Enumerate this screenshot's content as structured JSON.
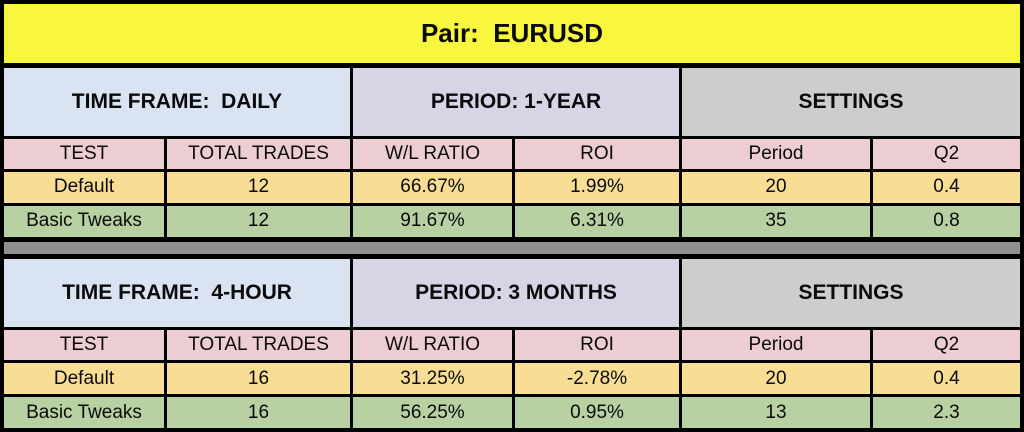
{
  "banner": {
    "title": "Pair:  EURUSD"
  },
  "colors": {
    "banner_yellow": "#f8f73d",
    "section_blue": "#dae3f1",
    "section_purple": "#d9d3e6",
    "section_gray": "#cdcdcb",
    "header_pink": "#eccdd2",
    "row_yellow": "#f8dd94",
    "row_green": "#b7d1a3",
    "divider_gray": "#8f8f8f",
    "border_black": "#000000"
  },
  "tables": [
    {
      "time_frame": "TIME FRAME:  DAILY",
      "period": "PERIOD: 1-YEAR",
      "settings": "SETTINGS",
      "columns": [
        "TEST",
        "TOTAL TRADES",
        "W/L RATIO",
        "ROI",
        "Period",
        "Q2"
      ],
      "rows": [
        {
          "test": "Default",
          "total_trades": "12",
          "wl_ratio": "66.67%",
          "roi": "1.99%",
          "period": "20",
          "q2": "0.4"
        },
        {
          "test": "Basic Tweaks",
          "total_trades": "12",
          "wl_ratio": "91.67%",
          "roi": "6.31%",
          "period": "35",
          "q2": "0.8"
        }
      ]
    },
    {
      "time_frame": "TIME FRAME:  4-HOUR",
      "period": "PERIOD: 3 MONTHS",
      "settings": "SETTINGS",
      "columns": [
        "TEST",
        "TOTAL TRADES",
        "W/L RATIO",
        "ROI",
        "Period",
        "Q2"
      ],
      "rows": [
        {
          "test": "Default",
          "total_trades": "16",
          "wl_ratio": "31.25%",
          "roi": "-2.78%",
          "period": "20",
          "q2": "0.4"
        },
        {
          "test": "Basic Tweaks",
          "total_trades": "16",
          "wl_ratio": "56.25%",
          "roi": "0.95%",
          "period": "13",
          "q2": "2.3"
        }
      ]
    }
  ]
}
